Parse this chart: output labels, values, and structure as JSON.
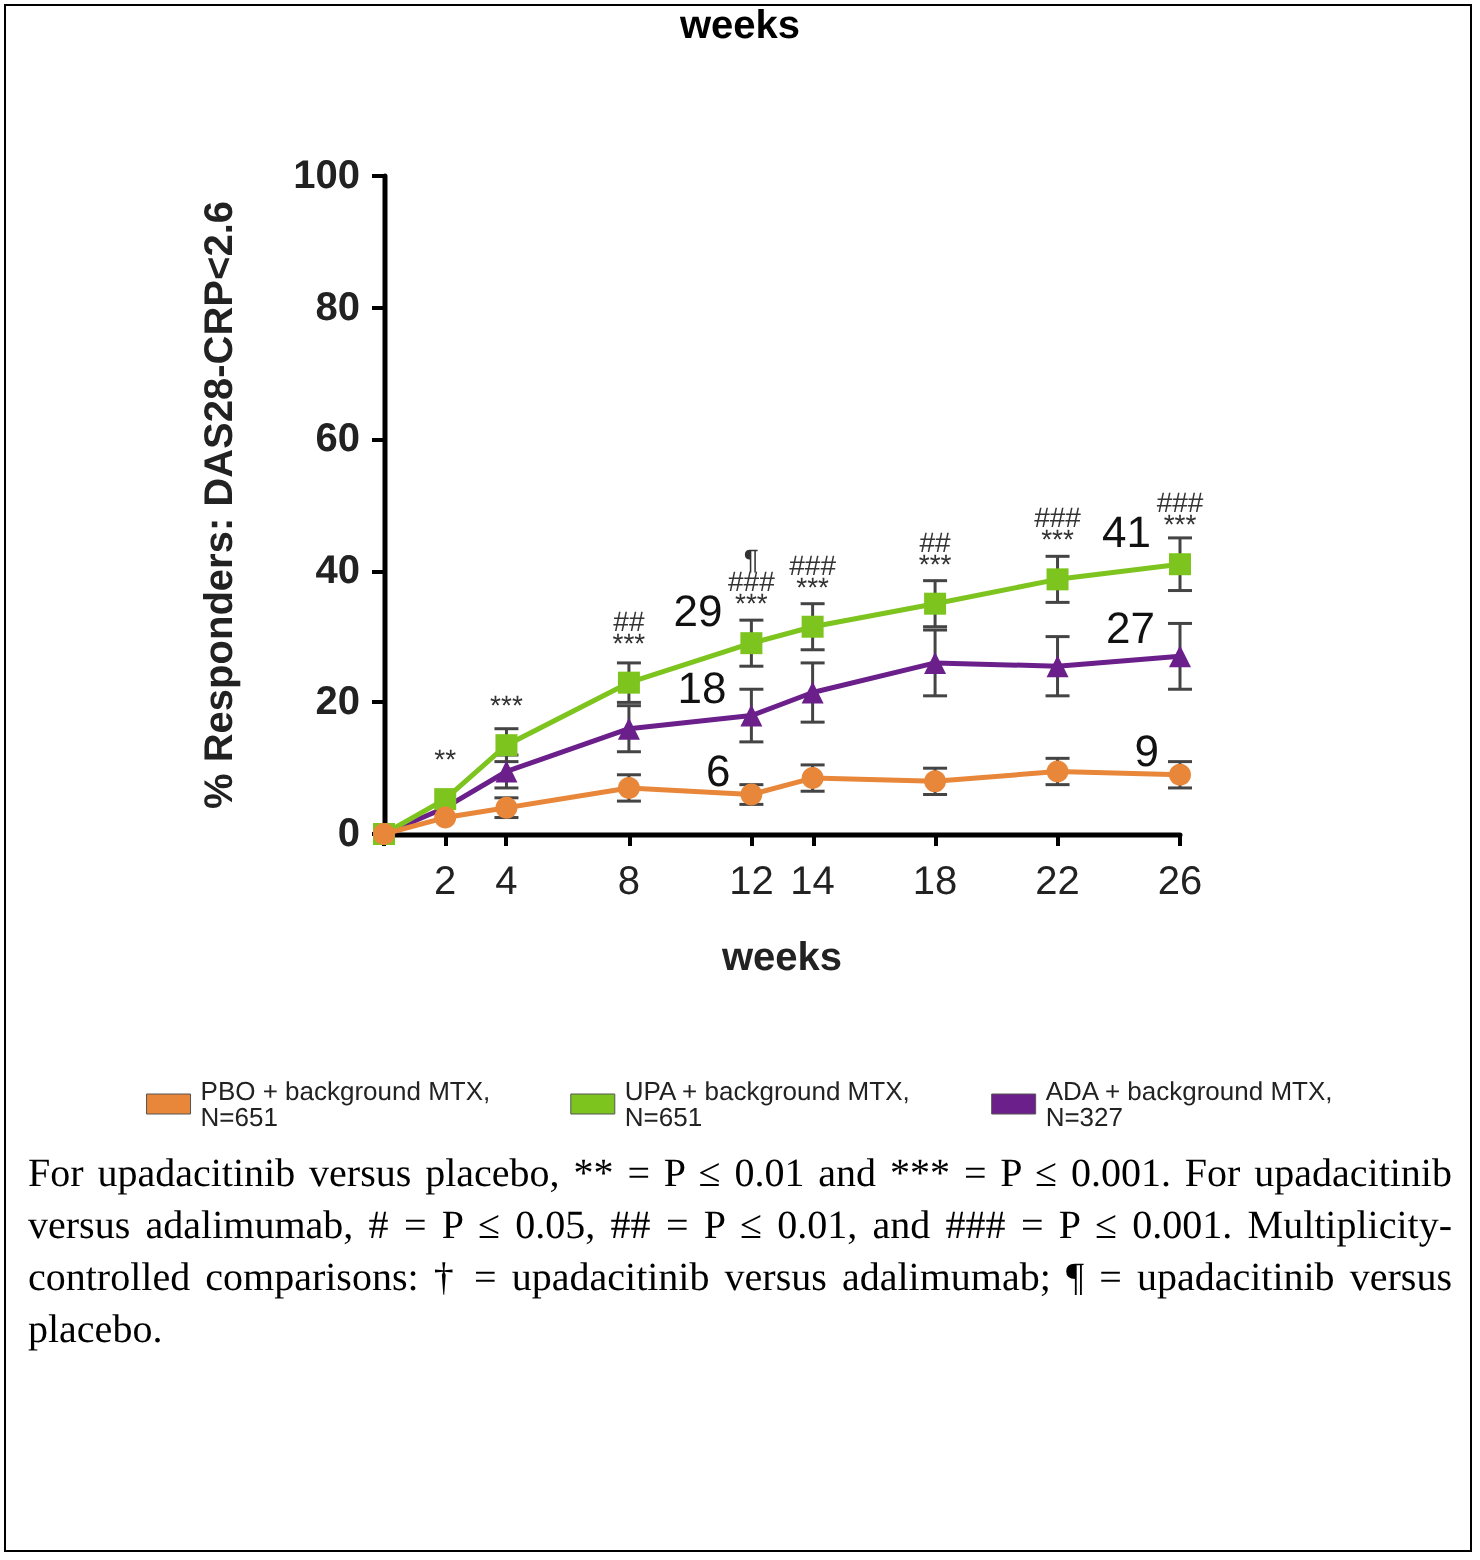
{
  "chart_data": {
    "type": "line",
    "xlabel": "weeks",
    "ylabel": "% Responders: DAS28-CRP<2.6",
    "x": [
      0,
      2,
      4,
      8,
      12,
      14,
      18,
      22,
      26
    ],
    "xlim": [
      0,
      26
    ],
    "xticks": [
      {
        "value": 0,
        "label": null
      },
      2,
      4,
      8,
      12,
      14,
      18,
      22,
      26
    ],
    "ylim": [
      0,
      100
    ],
    "yticks": [
      0,
      20,
      40,
      60,
      80,
      100
    ],
    "grid": false,
    "legend": "bottom",
    "series": [
      {
        "name": "PBO + background MTX, N=651",
        "color": "#e8873a",
        "marker": "circle",
        "values": [
          0,
          2.5,
          4,
          7,
          6,
          8.5,
          8,
          9.5,
          9
        ],
        "errors": [
          null,
          null,
          1.5,
          2,
          1.5,
          2,
          2,
          2,
          2
        ],
        "value_labels": [
          null,
          null,
          null,
          null,
          "6",
          null,
          null,
          null,
          "9"
        ]
      },
      {
        "name": "UPA + background MTX, N=651",
        "color": "#7dc41f",
        "marker": "square",
        "values": [
          0,
          5.3,
          13.5,
          23,
          29,
          31.5,
          35,
          38.7,
          41
        ],
        "errors": [
          null,
          null,
          2.5,
          3,
          3.5,
          3.5,
          3.5,
          3.5,
          4
        ],
        "value_labels": [
          null,
          null,
          null,
          null,
          "29",
          null,
          null,
          null,
          "41"
        ]
      },
      {
        "name": "ADA + background MTX, N=327",
        "color": "#6b1f8a",
        "marker": "triangle",
        "values": [
          0,
          4,
          9.5,
          16,
          18,
          21.5,
          26,
          25.5,
          27
        ],
        "errors": [
          null,
          null,
          2.5,
          3.5,
          4,
          4.5,
          5,
          4.5,
          5
        ],
        "value_labels": [
          null,
          null,
          null,
          null,
          "18",
          null,
          null,
          null,
          "27"
        ]
      }
    ],
    "annotations": [
      "weeks",
      {
        "text": "**",
        "x": 2,
        "y": 5.3
      },
      {
        "text": "***",
        "x": 4,
        "y": 13.5
      },
      {
        "text": "***",
        "x": 8,
        "y": 23
      },
      {
        "text": "##",
        "x": 8,
        "y": 23
      },
      {
        "text": "***",
        "x": 12,
        "y": 29
      },
      {
        "text": "###",
        "x": 12,
        "y": 29
      },
      {
        "text": "¶",
        "x": 12,
        "y": 29
      },
      {
        "text": "***",
        "x": 14,
        "y": 31.5
      },
      {
        "text": "###",
        "x": 14,
        "y": 31.5
      },
      {
        "text": "***",
        "x": 18,
        "y": 35
      },
      {
        "text": "##",
        "x": 18,
        "y": 35
      },
      {
        "text": "***",
        "x": 22,
        "y": 38.7
      },
      {
        "text": "###",
        "x": 22,
        "y": 38.7
      },
      {
        "text": "***",
        "x": 26,
        "y": 41
      },
      {
        "text": "###",
        "x": 26,
        "y": 41
      },
      "For upadacitinib versus placebo, ** = P ≤ 0.01 and *** = P ≤ 0.001. For upadacitinib versus adalimumab, # = P ≤ 0.05, ## = P ≤ 0.01, and ### = P ≤ 0.001. Multiplicity-controlled comparisons: † = upadacitinib versus adalimumab; ¶ = upadacitinib versus placebo."
    ]
  }
}
